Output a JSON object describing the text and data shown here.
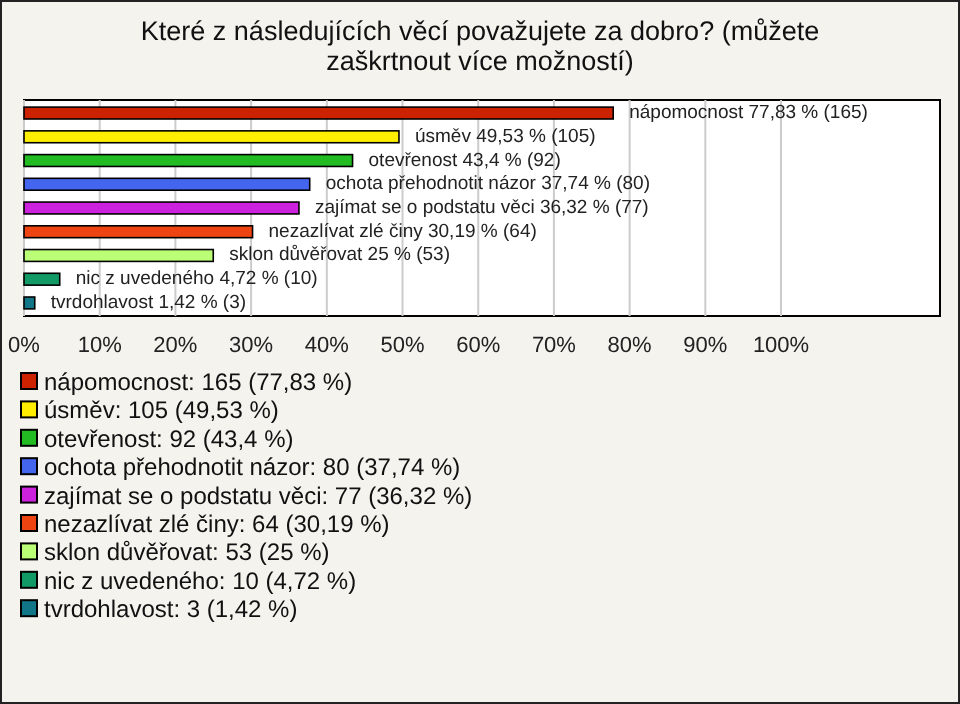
{
  "chart_data": {
    "type": "bar",
    "orientation": "horizontal",
    "title": "Které z následujících věcí považujete za dobro? (můžete zaškrtnout více možností)",
    "categories": [
      null,
      null,
      null,
      null,
      null,
      null,
      null,
      null,
      null
    ],
    "series": [
      {
        "name": "nápomocnost: 165 (77,83 %)",
        "color": "#cc2200",
        "values": [
          77.83,
          null,
          null,
          null,
          null,
          null,
          null,
          null,
          null
        ],
        "value_labels": [
          "nápomocnost 77,83 % (165)",
          null,
          null,
          null,
          null,
          null,
          null,
          null,
          null
        ]
      },
      {
        "name": "úsměv: 105 (49,53 %)",
        "color": "#ffee00",
        "values": [
          null,
          49.53,
          null,
          null,
          null,
          null,
          null,
          null,
          null
        ],
        "value_labels": [
          null,
          "úsměv 49,53 % (105)",
          null,
          null,
          null,
          null,
          null,
          null,
          null
        ]
      },
      {
        "name": "otevřenost: 92 (43,4 %)",
        "color": "#22bb22",
        "values": [
          null,
          null,
          43.4,
          null,
          null,
          null,
          null,
          null,
          null
        ],
        "value_labels": [
          null,
          null,
          "otevřenost 43,4 % (92)",
          null,
          null,
          null,
          null,
          null,
          null
        ]
      },
      {
        "name": "ochota přehodnotit názor: 80 (37,74 %)",
        "color": "#4466ee",
        "values": [
          null,
          null,
          null,
          37.74,
          null,
          null,
          null,
          null,
          null
        ],
        "value_labels": [
          null,
          null,
          null,
          "ochota přehodnotit názor 37,74 % (80)",
          null,
          null,
          null,
          null,
          null
        ]
      },
      {
        "name": "zajímat se o podstatu věci: 77 (36,32 %)",
        "color": "#cc22dd",
        "values": [
          null,
          null,
          null,
          null,
          36.32,
          null,
          null,
          null,
          null
        ],
        "value_labels": [
          null,
          null,
          null,
          null,
          "zajímat se o podstatu věci 36,32 % (77)",
          null,
          null,
          null,
          null
        ]
      },
      {
        "name": "nezazlívat zlé činy: 64 (30,19 %)",
        "color": "#ee4411",
        "values": [
          null,
          null,
          null,
          null,
          null,
          30.19,
          null,
          null,
          null
        ],
        "value_labels": [
          null,
          null,
          null,
          null,
          null,
          "nezazlívat zlé činy 30,19 % (64)",
          null,
          null,
          null
        ]
      },
      {
        "name": "sklon důvěřovat: 53 (25 %)",
        "color": "#bbff77",
        "values": [
          null,
          null,
          null,
          null,
          null,
          null,
          25,
          null,
          null
        ],
        "value_labels": [
          null,
          null,
          null,
          null,
          null,
          null,
          "sklon důvěřovat 25 % (53)",
          null,
          null
        ]
      },
      {
        "name": "nic z uvedeného: 10 (4,72 %)",
        "color": "#119966",
        "values": [
          null,
          null,
          null,
          null,
          null,
          null,
          null,
          4.72,
          null
        ],
        "value_labels": [
          null,
          null,
          null,
          null,
          null,
          null,
          null,
          "nic z uvedeného 4,72 % (10)",
          null
        ]
      },
      {
        "name": "tvrdohlavost: 3 (1,42 %)",
        "color": "#117788",
        "values": [
          null,
          null,
          null,
          null,
          null,
          null,
          null,
          null,
          1.42
        ],
        "value_labels": [
          null,
          null,
          null,
          null,
          null,
          null,
          null,
          null,
          "tvrdohlavost 1,42 % (3)"
        ]
      }
    ],
    "xlim": [
      0,
      121
    ],
    "xticks": [
      {
        "value": 0,
        "label": "0%"
      },
      {
        "value": 10,
        "label": "10%"
      },
      {
        "value": 20,
        "label": "20%"
      },
      {
        "value": 30,
        "label": "30%"
      },
      {
        "value": 40,
        "label": "40%"
      },
      {
        "value": 50,
        "label": "50%"
      },
      {
        "value": 60,
        "label": "60%"
      },
      {
        "value": 70,
        "label": "70%"
      },
      {
        "value": 80,
        "label": "80%"
      },
      {
        "value": 90,
        "label": "90%"
      },
      {
        "value": 100,
        "label": "100%"
      }
    ],
    "grid": "x",
    "legend": "bottom"
  }
}
